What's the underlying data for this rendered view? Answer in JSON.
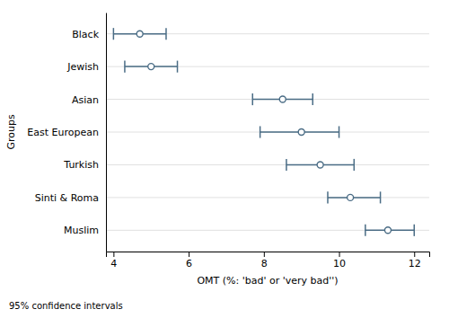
{
  "chart_data": {
    "type": "dot",
    "orientation": "horizontal",
    "categories": [
      "Black",
      "Jewish",
      "Asian",
      "East European",
      "Turkish",
      "Sinti & Roma",
      "Muslim"
    ],
    "values": [
      4.7,
      5.0,
      8.5,
      9.0,
      9.5,
      10.3,
      11.3
    ],
    "ci_lower": [
      4.0,
      4.3,
      7.7,
      7.9,
      8.6,
      9.7,
      10.7
    ],
    "ci_upper": [
      5.4,
      5.7,
      9.3,
      10.0,
      10.4,
      11.1,
      12.0
    ],
    "xlabel": "OMT (%: 'bad' or 'very bad'')",
    "ylabel": "Groups",
    "xlim": [
      3.8,
      12.4
    ],
    "xticks": [
      4,
      6,
      8,
      10,
      12
    ],
    "annotations": [
      "95% confidence intervals"
    ],
    "color": "#4a6c85",
    "marker": "circle",
    "grid": true
  }
}
